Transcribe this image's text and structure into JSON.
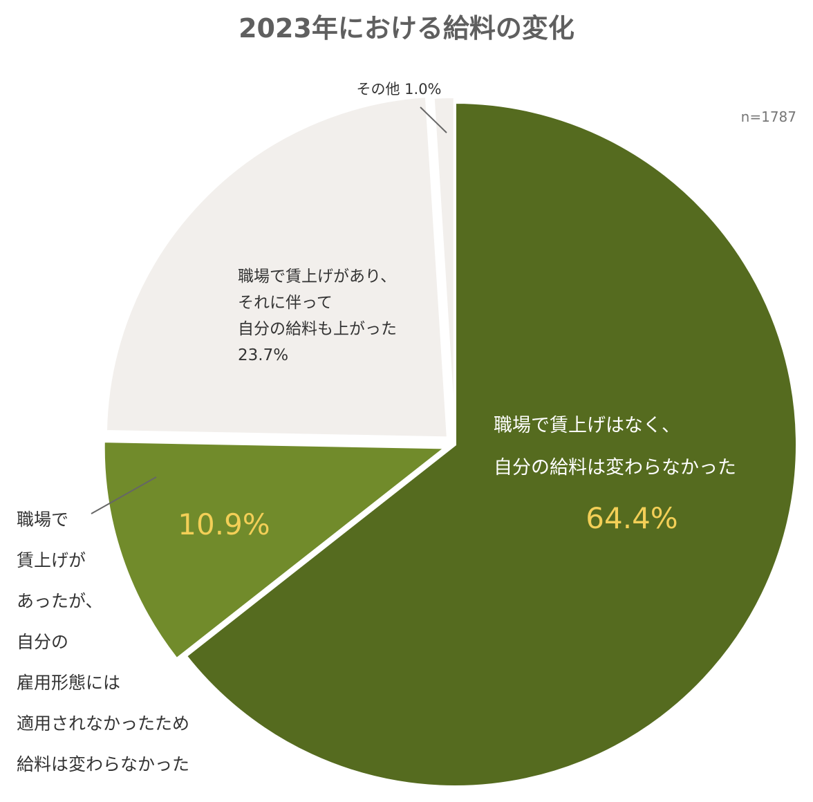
{
  "chart_data": {
    "type": "pie",
    "title": "2023年における給料の変化",
    "annotation": "n=1787",
    "slices": [
      {
        "label_lines": [
          "職場で賃上げはなく、",
          "自分の給料は変わらなかった"
        ],
        "value": 64.4,
        "value_label": "64.4%",
        "color": "#556b1f"
      },
      {
        "label_lines": [
          "職場で",
          "賃上げが",
          "あったが、",
          "自分の",
          "雇用形態には",
          "適用されなかったため",
          "給料は変わらなかった"
        ],
        "value": 10.9,
        "value_label": "10.9%",
        "color": "#718b2b"
      },
      {
        "label_lines": [
          "職場で賃上げがあり、",
          "それに伴って",
          "自分の給料も上がった"
        ],
        "value": 23.7,
        "value_label": "23.7%",
        "color": "#f2efec"
      },
      {
        "label_lines": [
          "その他"
        ],
        "value": 1.0,
        "value_label": "1.0%",
        "color": "#f2efec"
      }
    ]
  }
}
